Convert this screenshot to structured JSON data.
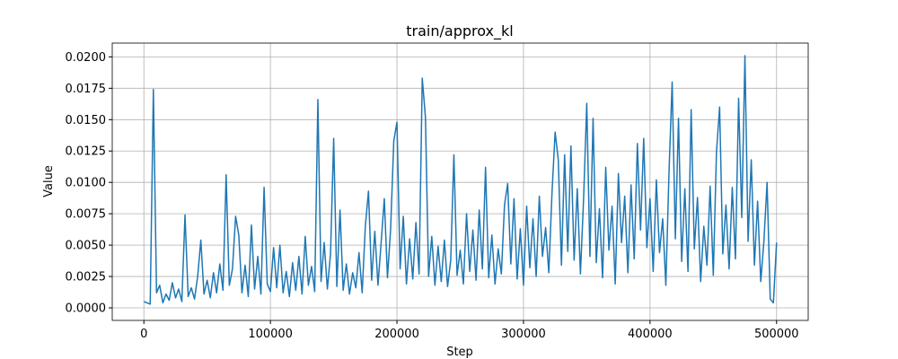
{
  "chart_data": {
    "type": "line",
    "title": "train/approx_kl",
    "xlabel": "Step",
    "ylabel": "Value",
    "color": "#1f77b4",
    "grid": true,
    "xlim": [
      -25000,
      525000
    ],
    "xticks": [
      0,
      100000,
      200000,
      300000,
      400000,
      500000
    ],
    "ylim": [
      -0.001,
      0.0211
    ],
    "yticks": [
      {
        "value": 0,
        "label": "0.0000"
      },
      {
        "value": 0.0025,
        "label": "0.0025"
      },
      {
        "value": 0.005,
        "label": "0.0050"
      },
      {
        "value": 0.0075,
        "label": "0.0075"
      },
      {
        "value": 0.01,
        "label": "0.0100"
      },
      {
        "value": 0.0125,
        "label": "0.0125"
      },
      {
        "value": 0.015,
        "label": "0.0150"
      },
      {
        "value": 0.0175,
        "label": "0.0175"
      },
      {
        "value": 0.02,
        "label": "0.0200"
      }
    ],
    "x": [
      0,
      2500,
      5000,
      7500,
      10000,
      12500,
      15000,
      17500,
      20000,
      22500,
      25000,
      27500,
      30000,
      32500,
      35000,
      37500,
      40000,
      42500,
      45000,
      47500,
      50000,
      52500,
      55000,
      57500,
      60000,
      62500,
      65000,
      67500,
      70000,
      72500,
      75000,
      77500,
      80000,
      82500,
      85000,
      87500,
      90000,
      92500,
      95000,
      97500,
      100000,
      102500,
      105000,
      107500,
      110000,
      112500,
      115000,
      117500,
      120000,
      122500,
      125000,
      127500,
      130000,
      132500,
      135000,
      137500,
      140000,
      142500,
      145000,
      147500,
      150000,
      152500,
      155000,
      157500,
      160000,
      162500,
      165000,
      167500,
      170000,
      172500,
      175000,
      177500,
      180000,
      182500,
      185000,
      187500,
      190000,
      192500,
      195000,
      197500,
      200000,
      202500,
      205000,
      207500,
      210000,
      212500,
      215000,
      217500,
      220000,
      222500,
      225000,
      227500,
      230000,
      232500,
      235000,
      237500,
      240000,
      242500,
      245000,
      247500,
      250000,
      252500,
      255000,
      257500,
      260000,
      262500,
      265000,
      267500,
      270000,
      272500,
      275000,
      277500,
      280000,
      282500,
      285000,
      287500,
      290000,
      292500,
      295000,
      297500,
      300000,
      302500,
      305000,
      307500,
      310000,
      312500,
      315000,
      317500,
      320000,
      322500,
      325000,
      327500,
      330000,
      332500,
      335000,
      337500,
      340000,
      342500,
      345000,
      347500,
      350000,
      352500,
      355000,
      357500,
      360000,
      362500,
      365000,
      367500,
      370000,
      372500,
      375000,
      377500,
      380000,
      382500,
      385000,
      387500,
      390000,
      392500,
      395000,
      397500,
      400000,
      402500,
      405000,
      407500,
      410000,
      412500,
      415000,
      417500,
      420000,
      422500,
      425000,
      427500,
      430000,
      432500,
      435000,
      437500,
      440000,
      442500,
      445000,
      447500,
      450000,
      452500,
      455000,
      457500,
      460000,
      462500,
      465000,
      467500,
      470000,
      472500,
      475000,
      477500,
      480000,
      482500,
      485000,
      487500,
      490000,
      492500,
      495000,
      497500,
      500000
    ],
    "values": [
      0.0005,
      0.0004,
      0.0003,
      0.0174,
      0.0012,
      0.0018,
      0.0004,
      0.0011,
      0.0006,
      0.002,
      0.0008,
      0.0015,
      0.0005,
      0.0074,
      0.0009,
      0.0016,
      0.0007,
      0.0025,
      0.0054,
      0.0011,
      0.0022,
      0.0008,
      0.0028,
      0.0012,
      0.0035,
      0.0014,
      0.0106,
      0.0018,
      0.0031,
      0.0073,
      0.0058,
      0.0012,
      0.0034,
      0.0009,
      0.0066,
      0.0015,
      0.0041,
      0.0011,
      0.0096,
      0.0019,
      0.0013,
      0.0048,
      0.0016,
      0.005,
      0.0012,
      0.0029,
      0.0009,
      0.0036,
      0.0014,
      0.0041,
      0.0011,
      0.0057,
      0.0018,
      0.0033,
      0.0013,
      0.0166,
      0.0021,
      0.0052,
      0.0015,
      0.0043,
      0.0135,
      0.0017,
      0.0078,
      0.0014,
      0.0035,
      0.0011,
      0.0028,
      0.0016,
      0.0044,
      0.0012,
      0.0065,
      0.0093,
      0.0022,
      0.0061,
      0.0018,
      0.0052,
      0.0087,
      0.0024,
      0.0063,
      0.0133,
      0.0148,
      0.0031,
      0.0073,
      0.0019,
      0.0055,
      0.0023,
      0.0068,
      0.0027,
      0.0183,
      0.0152,
      0.0025,
      0.0057,
      0.0018,
      0.0049,
      0.0021,
      0.0054,
      0.0017,
      0.0038,
      0.0122,
      0.0026,
      0.0046,
      0.0019,
      0.0075,
      0.0029,
      0.0062,
      0.0022,
      0.0078,
      0.0031,
      0.0112,
      0.0024,
      0.0058,
      0.0019,
      0.0047,
      0.0027,
      0.0082,
      0.0099,
      0.0035,
      0.0087,
      0.0023,
      0.0063,
      0.0018,
      0.0081,
      0.0032,
      0.0071,
      0.0025,
      0.0089,
      0.0041,
      0.0064,
      0.0028,
      0.0091,
      0.014,
      0.0118,
      0.0034,
      0.0122,
      0.0045,
      0.0129,
      0.0038,
      0.0095,
      0.0027,
      0.0087,
      0.0163,
      0.0041,
      0.0151,
      0.0036,
      0.0079,
      0.0024,
      0.0112,
      0.0046,
      0.0081,
      0.0019,
      0.0107,
      0.0052,
      0.0089,
      0.0028,
      0.0098,
      0.0039,
      0.0131,
      0.0062,
      0.0135,
      0.0048,
      0.0087,
      0.0029,
      0.0102,
      0.0044,
      0.0071,
      0.0018,
      0.0108,
      0.018,
      0.0055,
      0.0151,
      0.0037,
      0.0095,
      0.0029,
      0.0158,
      0.0047,
      0.0088,
      0.0021,
      0.0065,
      0.0034,
      0.0097,
      0.0026,
      0.0124,
      0.016,
      0.0043,
      0.0082,
      0.0031,
      0.0096,
      0.0039,
      0.0167,
      0.0072,
      0.0201,
      0.0053,
      0.0118,
      0.0034,
      0.0085,
      0.0021,
      0.0053,
      0.01,
      0.0007,
      0.0004,
      0.0052
    ]
  }
}
